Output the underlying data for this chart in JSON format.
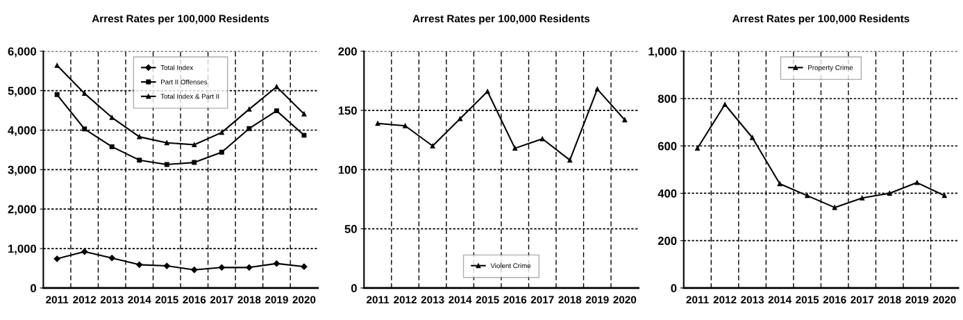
{
  "chart_data": [
    {
      "type": "line",
      "title": "Arrest Rates per 100,000 Residents",
      "categories": [
        "2011",
        "2012",
        "2013",
        "2014",
        "2015",
        "2016",
        "2017",
        "2018",
        "2019",
        "2020"
      ],
      "series": [
        {
          "name": "Total Index",
          "color": "#000000",
          "marker": "diamond",
          "values": [
            740,
            920,
            760,
            590,
            560,
            460,
            520,
            520,
            620,
            540
          ]
        },
        {
          "name": "Part II Offenses",
          "color": "#000000",
          "marker": "square",
          "values": [
            4900,
            4030,
            3580,
            3240,
            3130,
            3180,
            3440,
            4040,
            4490,
            3870
          ]
        },
        {
          "name": "Total Index & Part II",
          "color": "#000000",
          "marker": "triangle",
          "values": [
            5640,
            4930,
            4320,
            3830,
            3680,
            3630,
            3940,
            4530,
            5100,
            4410
          ]
        }
      ],
      "ylim": [
        0,
        6000
      ],
      "yticks": [
        {
          "value": 0,
          "label": "0"
        },
        {
          "value": 1000,
          "label": "1,000"
        },
        {
          "value": 2000,
          "label": "2,000"
        },
        {
          "value": 3000,
          "label": "3,000"
        },
        {
          "value": 4000,
          "label": "4,000"
        },
        {
          "value": 5000,
          "label": "5,000"
        },
        {
          "value": 6000,
          "label": "6,000"
        }
      ],
      "grid": true,
      "legend": "top",
      "line_style": "solid"
    },
    {
      "type": "line",
      "title": "Arrest Rates per 100,000 Residents",
      "categories": [
        "2011",
        "2012",
        "2013",
        "2014",
        "2015",
        "2016",
        "2017",
        "2018",
        "2019",
        "2020"
      ],
      "series": [
        {
          "name": "Violent Crime",
          "color": "#000000",
          "marker": "triangle",
          "values": [
            139,
            137,
            120,
            143,
            166,
            118,
            126,
            108,
            168,
            142
          ]
        }
      ],
      "ylim": [
        0,
        200
      ],
      "yticks": [
        0,
        50,
        100,
        150,
        200
      ],
      "grid": true,
      "legend": "bottom",
      "line_style": "solid"
    },
    {
      "type": "line",
      "title": "Arrest Rates per 100,000 Residents",
      "categories": [
        "2011",
        "2012",
        "2013",
        "2014",
        "2015",
        "2016",
        "2017",
        "2018",
        "2019",
        "2020"
      ],
      "series": [
        {
          "name": "Property Crime",
          "color": "#000000",
          "marker": "triangle",
          "values": [
            590,
            775,
            635,
            440,
            390,
            340,
            380,
            400,
            445,
            390
          ]
        }
      ],
      "ylim": [
        0,
        1000
      ],
      "yticks": [
        0,
        200,
        400,
        600,
        800,
        {
          "value": 1000,
          "label": "1,000"
        }
      ],
      "grid": true,
      "legend": "top",
      "line_style": "solid"
    }
  ]
}
